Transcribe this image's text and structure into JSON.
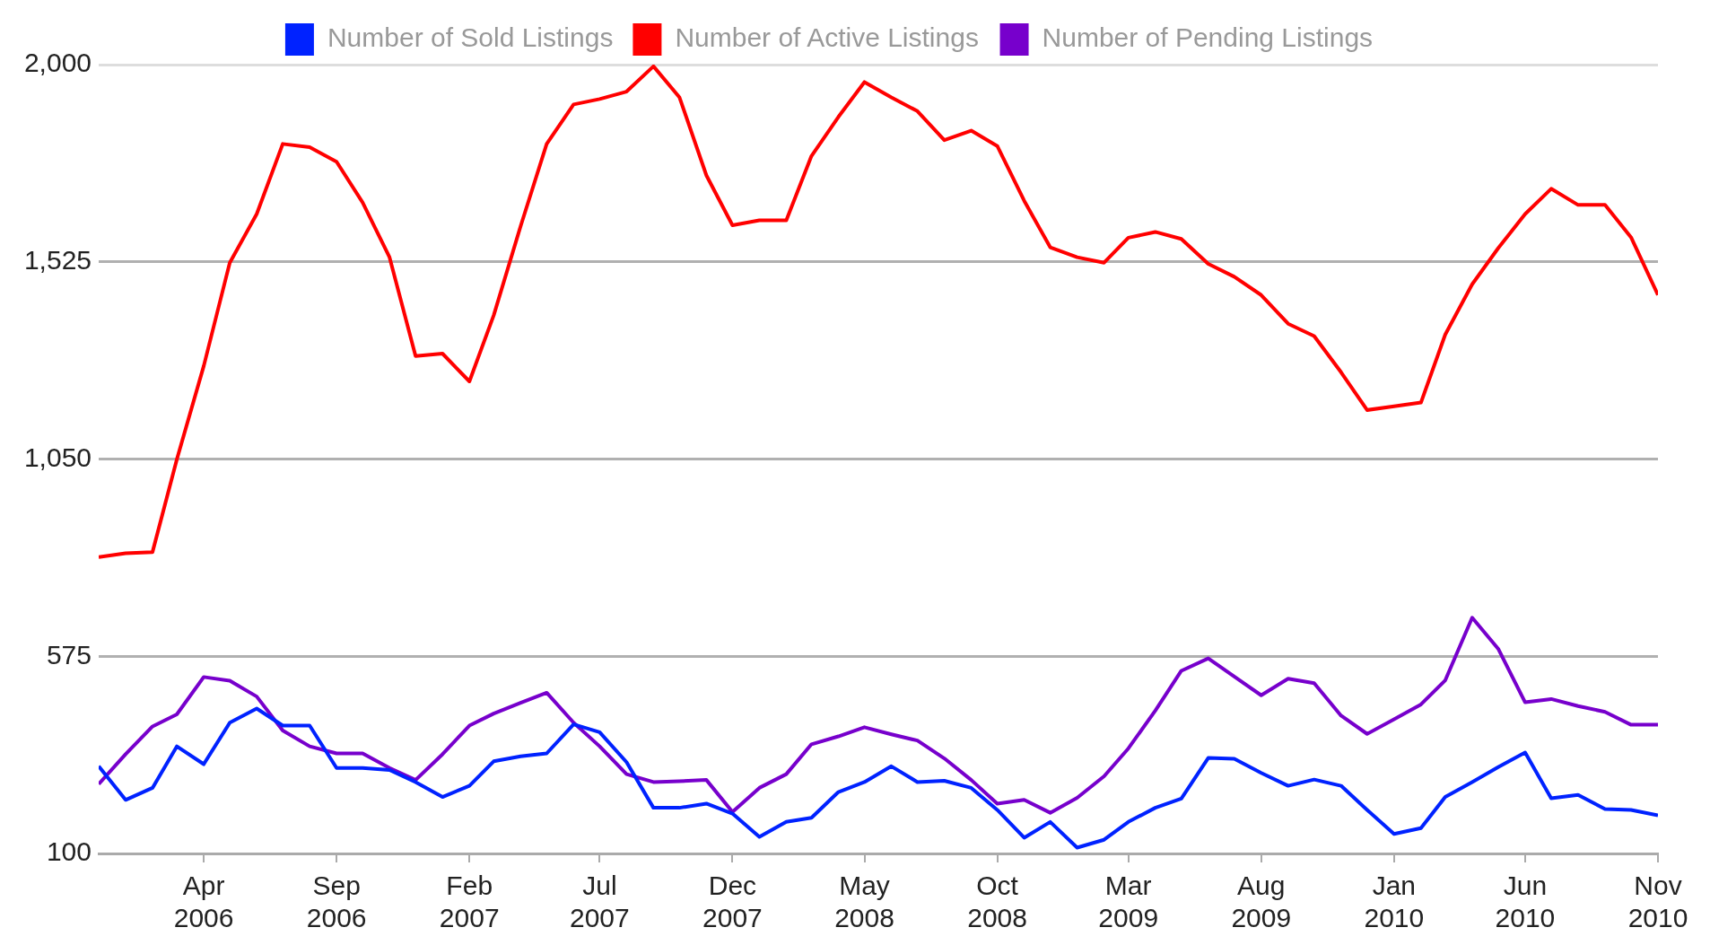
{
  "chart_data": {
    "type": "line",
    "x": [
      "2005-12",
      "2006-01",
      "2006-02",
      "2006-03",
      "2006-04",
      "2006-05",
      "2006-06",
      "2006-07",
      "2006-08",
      "2006-09",
      "2006-10",
      "2006-11",
      "2006-12",
      "2007-01",
      "2007-02",
      "2007-03",
      "2007-04",
      "2007-05",
      "2007-06",
      "2007-07",
      "2007-08",
      "2007-09",
      "2007-10",
      "2007-11",
      "2007-12",
      "2008-01",
      "2008-02",
      "2008-03",
      "2008-04",
      "2008-05",
      "2008-06",
      "2008-07",
      "2008-08",
      "2008-09",
      "2008-10",
      "2008-11",
      "2008-12",
      "2009-01",
      "2009-02",
      "2009-03",
      "2009-04",
      "2009-05",
      "2009-06",
      "2009-07",
      "2009-08",
      "2009-09",
      "2009-10",
      "2009-11",
      "2009-12",
      "2010-01",
      "2010-02",
      "2010-03",
      "2010-04",
      "2010-05",
      "2010-06",
      "2010-07",
      "2010-08",
      "2010-09",
      "2010-10",
      "2010-11"
    ],
    "series": [
      {
        "name": "Number of Sold Listings",
        "color": "#0022ff",
        "values": [
          310,
          229,
          258,
          358,
          315,
          415,
          449,
          408,
          408,
          306,
          306,
          301,
          272,
          236,
          263,
          322,
          334,
          341,
          411,
          392,
          320,
          210,
          210,
          220,
          196,
          140,
          176,
          186,
          248,
          272,
          310,
          272,
          275,
          258,
          205,
          138,
          176,
          114,
          133,
          176,
          210,
          232,
          330,
          328,
          294,
          263,
          278,
          263,
          205,
          147,
          161,
          236,
          272,
          308,
          343,
          233,
          241,
          207,
          205,
          192
        ]
      },
      {
        "name": "Number of Active Listings",
        "color": "#ff0000",
        "values": [
          814,
          823,
          826,
          1049,
          1274,
          1523,
          1640,
          1809,
          1801,
          1766,
          1668,
          1536,
          1298,
          1304,
          1237,
          1396,
          1611,
          1809,
          1904,
          1917,
          1935,
          1996,
          1921,
          1733,
          1613,
          1625,
          1625,
          1780,
          1874,
          1958,
          1921,
          1888,
          1818,
          1841,
          1804,
          1672,
          1560,
          1536,
          1523,
          1583,
          1597,
          1580,
          1520,
          1489,
          1445,
          1376,
          1346,
          1259,
          1168,
          1177,
          1186,
          1350,
          1471,
          1558,
          1640,
          1701,
          1662,
          1662,
          1584,
          1445
        ]
      },
      {
        "name": "Number of Pending Listings",
        "color": "#7700cc",
        "values": [
          267,
          339,
          406,
          435,
          525,
          516,
          478,
          396,
          358,
          341,
          341,
          306,
          277,
          339,
          408,
          437,
          463,
          487,
          415,
          358,
          291,
          272,
          274,
          277,
          200,
          258,
          291,
          363,
          382,
          404,
          387,
          372,
          329,
          277,
          220,
          229,
          198,
          234,
          286,
          353,
          444,
          540,
          570,
          526,
          481,
          521,
          510,
          432,
          388,
          423,
          459,
          517,
          668,
          593,
          464,
          472,
          455,
          441,
          410,
          410
        ]
      }
    ],
    "xlim": [
      "2005-12",
      "2010-11"
    ],
    "xticks": [
      {
        "value": "2006-04",
        "label": "Apr 2006"
      },
      {
        "value": "2006-09",
        "label": "Sep 2006"
      },
      {
        "value": "2007-02",
        "label": "Feb 2007"
      },
      {
        "value": "2007-07",
        "label": "Jul 2007"
      },
      {
        "value": "2007-12",
        "label": "Dec 2007"
      },
      {
        "value": "2008-05",
        "label": "May 2008"
      },
      {
        "value": "2008-10",
        "label": "Oct 2008"
      },
      {
        "value": "2009-03",
        "label": "Mar 2009"
      },
      {
        "value": "2009-08",
        "label": "Aug 2009"
      },
      {
        "value": "2010-01",
        "label": "Jan 2010"
      },
      {
        "value": "2010-06",
        "label": "Jun 2010"
      },
      {
        "value": "2010-11",
        "label": "Nov 2010"
      }
    ],
    "ylim": [
      100,
      2000
    ],
    "yticks": [
      {
        "value": 100,
        "label": "100"
      },
      {
        "value": 575,
        "label": "575"
      },
      {
        "value": 1050,
        "label": "1,050"
      },
      {
        "value": 1525,
        "label": "1,525"
      },
      {
        "value": 2000,
        "label": "2,000"
      }
    ],
    "grid": "y",
    "legend": "top",
    "marker": "none",
    "line_style": "solid"
  }
}
